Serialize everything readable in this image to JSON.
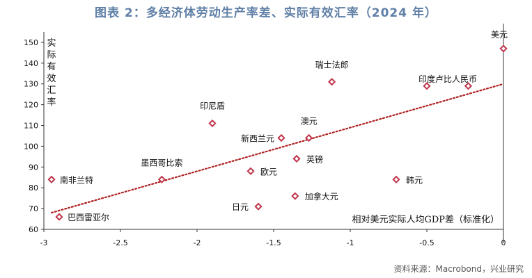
{
  "title": "图表 2：多经济体劳动生产率差、实际有效汇率（2024 年）",
  "source": "资料来源：Macrobond，兴业研究",
  "chart_data": {
    "type": "scatter",
    "xlabel": "相对美元实际人均GDP差（标准化）",
    "ylabel": "实际有效汇率",
    "xlim": [
      -3,
      0
    ],
    "ylim": [
      60,
      155
    ],
    "xticks": [
      -3,
      -2.5,
      -2,
      -1.5,
      -1,
      -0.5,
      0
    ],
    "xtick_labels": [
      "-3",
      "-2.5",
      "-2",
      "-1.5",
      "-1",
      "-0.5",
      "0"
    ],
    "yticks": [
      60,
      70,
      80,
      90,
      100,
      110,
      120,
      130,
      140,
      150
    ],
    "ytick_labels": [
      "60",
      "70",
      "80",
      "90",
      "100",
      "110",
      "120",
      "130",
      "140",
      "150"
    ],
    "points": [
      {
        "label": "美元",
        "x": 0.0,
        "y": 147
      },
      {
        "label": "瑞士法郎",
        "x": -1.12,
        "y": 131
      },
      {
        "label": "印度",
        "x": -0.5,
        "y": 129
      },
      {
        "label": "卢比",
        "x": -0.23,
        "y": 129
      },
      {
        "label": "印尼盾",
        "x": -1.9,
        "y": 111
      },
      {
        "label": "新西兰元",
        "x": -1.45,
        "y": 104
      },
      {
        "label": "澳元",
        "x": -1.27,
        "y": 104
      },
      {
        "label": "英镑",
        "x": -1.35,
        "y": 94
      },
      {
        "label": "欧元",
        "x": -1.65,
        "y": 88
      },
      {
        "label": "墨西哥比索",
        "x": -2.23,
        "y": 84
      },
      {
        "label": "南非兰特",
        "x": -2.95,
        "y": 84
      },
      {
        "label": "韩元",
        "x": -0.7,
        "y": 84
      },
      {
        "label": "加拿大元",
        "x": -1.36,
        "y": 76
      },
      {
        "label": "日元",
        "x": -1.6,
        "y": 71
      },
      {
        "label": "巴西雷亚尔",
        "x": -2.9,
        "y": 66
      }
    ],
    "group_label": "印度卢比人民币",
    "trendline": {
      "x": [
        -2.95,
        0.0
      ],
      "y": [
        68,
        130
      ]
    },
    "colors": {
      "marker": "#c0354b",
      "trendline": "#b01f1f",
      "title": "#5f7fa6"
    }
  }
}
